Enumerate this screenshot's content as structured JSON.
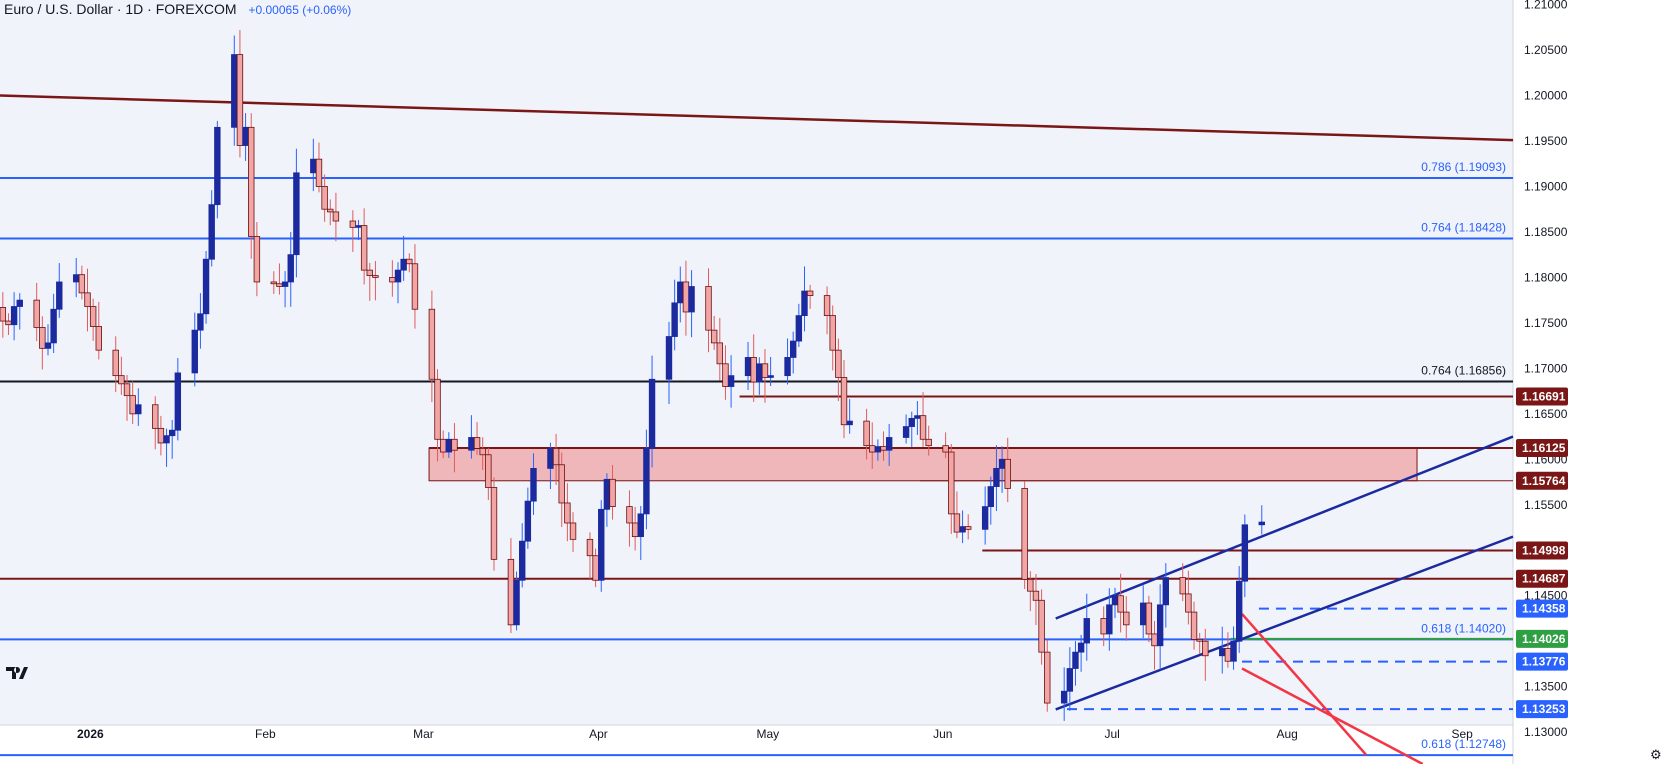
{
  "header": {
    "title": "Euro / U.S. Dollar · 1D · FOREXCOM",
    "change": "+0.00065 (+0.06%)"
  },
  "icons": {
    "logo": "tradingview-logo-icon",
    "settings": "gear-icon"
  },
  "colors": {
    "background": "#f0f3fa",
    "up_body": "#1b2a9e",
    "down_body": "#f2a5a5",
    "down_border": "#6b0f0f",
    "up_wick": "#2962ff",
    "down_wick": "#e35a5a",
    "blue_line": "#2962ff",
    "maroon_line": "#7a1616",
    "black_line": "#131722",
    "zone_fill": "#efb7ba",
    "channel": "#1b2a9e",
    "wedge": "#f23645",
    "green_badge": "#2ea043"
  },
  "chart_data": {
    "type": "candlestick",
    "symbol": "Euro / U.S. Dollar · 1D · FOREXCOM",
    "ylim": [
      1.1265,
      1.2105
    ],
    "y_ticks": [
      "1.21000",
      "1.20500",
      "1.20000",
      "1.19500",
      "1.19000",
      "1.18500",
      "1.18000",
      "1.17500",
      "1.17000",
      "1.16500",
      "1.16000",
      "1.15500",
      "1.14500",
      "1.13500",
      "1.13000"
    ],
    "x_ticks": [
      {
        "label": "2026",
        "date": "2026-01-01"
      },
      {
        "label": "Feb",
        "date": "2026-02-01"
      },
      {
        "label": "Mar",
        "date": "2026-03-01"
      },
      {
        "label": "Apr",
        "date": "2026-04-01"
      },
      {
        "label": "May",
        "date": "2026-05-01"
      },
      {
        "label": "Jun",
        "date": "2026-06-01"
      },
      {
        "label": "Jul",
        "date": "2026-07-01"
      },
      {
        "label": "Aug",
        "date": "2026-08-01"
      },
      {
        "label": "Sep",
        "date": "2026-09-01"
      }
    ],
    "xlim": [
      "2025-12-16",
      "2026-09-10"
    ],
    "date_start": "2025-12-16",
    "daily_closes": [
      1.1752,
      1.1748,
      1.1768,
      1.1775,
      1.1745,
      1.1722,
      1.1728,
      1.1765,
      1.1795,
      1.1803,
      1.1783,
      1.1768,
      1.1746,
      1.172,
      1.1692,
      1.1683,
      1.167,
      1.165,
      1.166,
      1.1634,
      1.1618,
      1.1626,
      1.1632,
      1.1695,
      1.1742,
      1.176,
      1.182,
      1.188,
      1.1965,
      1.2045,
      1.1945,
      1.1965,
      1.1845,
      1.1795,
      1.1793,
      1.179,
      1.1795,
      1.1825,
      1.1915,
      1.193,
      1.19,
      1.1875,
      1.1872,
      1.1862,
      1.1855,
      1.1857,
      1.1808,
      1.1802,
      1.18,
      1.1795,
      1.1808,
      1.182,
      1.1815,
      1.1765,
      1.1688,
      1.1622,
      1.1608,
      1.1622,
      1.161,
      1.1624,
      1.1612,
      1.1605,
      1.1569,
      1.149,
      1.1418,
      1.1467,
      1.151,
      1.1554,
      1.159,
      1.1612,
      1.1594,
      1.1552,
      1.153,
      1.1512,
      1.1494,
      1.1467,
      1.1545,
      1.1578,
      1.1548,
      1.153,
      1.1515,
      1.154,
      1.1612,
      1.1688,
      1.1735,
      1.1772,
      1.1795,
      1.1762,
      1.179,
      1.1742,
      1.1728,
      1.1705,
      1.168,
      1.1692,
      1.1712,
      1.1685,
      1.1705,
      1.169,
      1.1692,
      1.1712,
      1.173,
      1.1758,
      1.1785,
      1.178,
      1.1758,
      1.172,
      1.169,
      1.1638,
      1.1642,
      1.1615,
      1.1608,
      1.1614,
      1.161,
      1.1624,
      1.1636,
      1.1645,
      1.1648,
      1.1622,
      1.1615,
      1.1608,
      1.154,
      1.152,
      1.1526,
      1.1523,
      1.1548,
      1.157,
      1.159,
      1.16,
      1.1568,
      1.1468,
      1.1455,
      1.1445,
      1.1388,
      1.1332,
      1.1345,
      1.137,
      1.1388,
      1.1398,
      1.1425,
      1.1408,
      1.144,
      1.145,
      1.1432,
      1.1418,
      1.1442,
      1.1408,
      1.1395,
      1.144,
      1.147,
      1.1452,
      1.1432,
      1.1402,
      1.14,
      1.1384,
      1.1392,
      1.1378,
      1.14,
      1.1466,
      1.1528,
      1.1531
    ],
    "horizontal_levels": [
      {
        "value": 1.19093,
        "label": "0.786 (1.19093)",
        "style": "fib-blue"
      },
      {
        "value": 1.18428,
        "label": "0.764 (1.18428)",
        "style": "fib-blue"
      },
      {
        "value": 1.16856,
        "label": "0.764 (1.16856)",
        "style": "fib-black"
      },
      {
        "value": 1.1402,
        "label": "0.618 (1.14020)",
        "style": "fib-blue"
      },
      {
        "value": 1.12748,
        "label": "0.618 (1.12748)",
        "style": "fib-blue"
      }
    ],
    "price_badges": [
      {
        "value": 1.16691,
        "label": "1.16691",
        "color": "maroon"
      },
      {
        "value": 1.16125,
        "label": "1.16125",
        "color": "maroon"
      },
      {
        "value": 1.15764,
        "label": "1.15764",
        "color": "maroon"
      },
      {
        "value": 1.14998,
        "label": "1.14998",
        "color": "maroon"
      },
      {
        "value": 1.14687,
        "label": "1.14687",
        "color": "maroon"
      },
      {
        "value": 1.14358,
        "label": "1.14358",
        "color": "blue"
      },
      {
        "value": 1.14026,
        "label": "1.14026",
        "color": "green"
      },
      {
        "value": 1.13776,
        "label": "1.13776",
        "color": "blue"
      },
      {
        "value": 1.13253,
        "label": "1.13253",
        "color": "blue"
      }
    ],
    "resistance_zone": [
      1.15764,
      1.16125
    ],
    "trendlines": [
      {
        "name": "downtrend",
        "from": [
          "2025-12-16",
          1.2
        ],
        "to": [
          "2026-09-10",
          1.1951
        ]
      },
      {
        "name": "channel-upper",
        "from": [
          "2026-06-21",
          1.1425
        ],
        "to": [
          "2026-09-10",
          1.1625
        ]
      },
      {
        "name": "channel-lower",
        "from": [
          "2026-06-21",
          1.1325
        ],
        "to": [
          "2026-09-10",
          1.1515
        ]
      },
      {
        "name": "wedge-upper",
        "from": [
          "2026-07-24",
          1.143
        ],
        "to": [
          "2026-08-15",
          1.1275
        ]
      },
      {
        "name": "wedge-lower",
        "from": [
          "2026-07-24",
          1.137
        ],
        "to": [
          "2026-08-25",
          1.1265
        ]
      }
    ]
  }
}
